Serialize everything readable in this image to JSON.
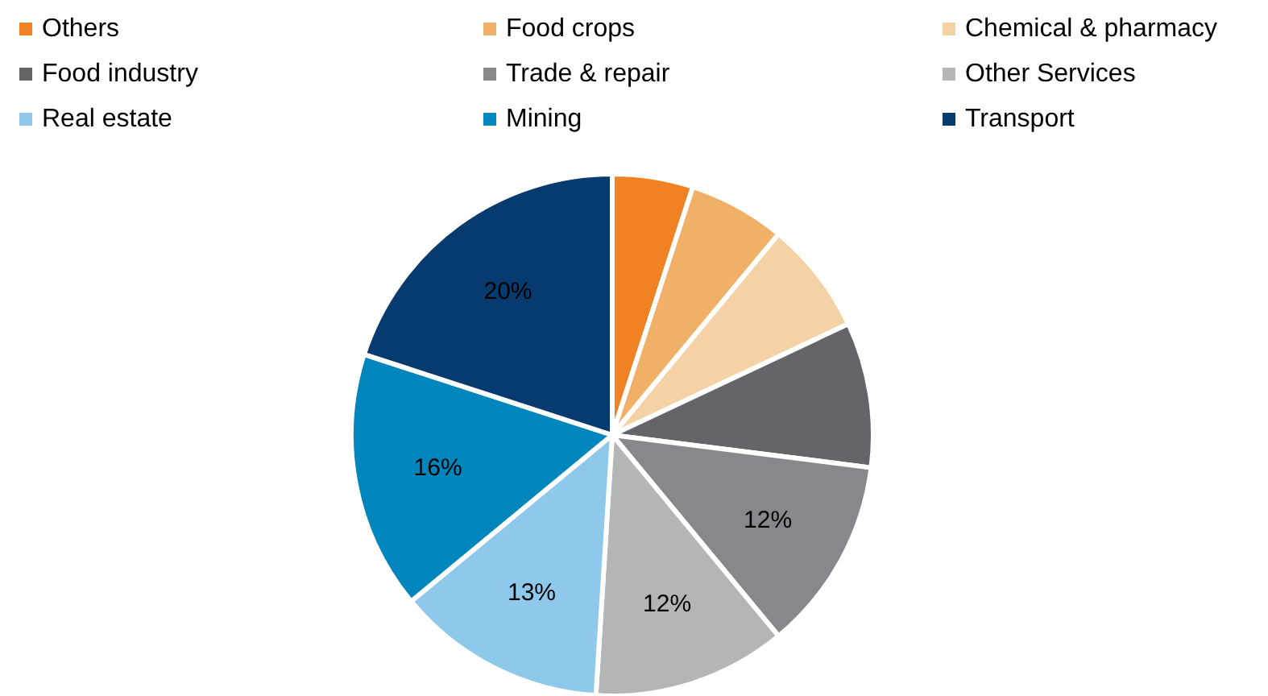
{
  "chart_data": {
    "type": "pie",
    "categories": [
      "Others",
      "Food crops",
      "Chemical & pharmacy",
      "Food industry",
      "Trade & repair",
      "Other Services",
      "Real estate",
      "Mining",
      "Transport"
    ],
    "values": [
      5,
      6,
      7,
      9,
      12,
      12,
      13,
      16,
      20
    ],
    "colors": [
      "#f08224",
      "#f0b068",
      "#f5d2a6",
      "#636569",
      "#86888b",
      "#b4b5b7",
      "#8ec8ea",
      "#0086bd",
      "#073a6f"
    ],
    "value_labels": [
      null,
      null,
      null,
      null,
      "12%",
      "12%",
      "13%",
      "16%",
      "20%"
    ],
    "legend": "top"
  }
}
